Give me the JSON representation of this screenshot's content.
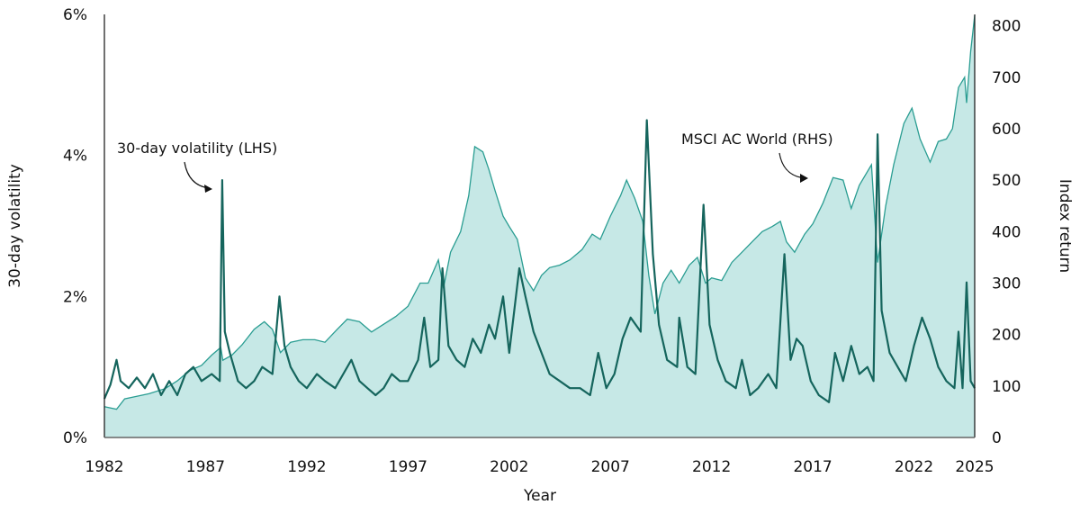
{
  "chart_data": {
    "type": "line",
    "xlabel": "Year",
    "ylabel_left": "30-day volatility",
    "ylabel_right": "Index return",
    "xlim": [
      1982,
      2025
    ],
    "ylim_left": [
      0,
      6
    ],
    "ylim_right": [
      0,
      822
    ],
    "x_ticks": [
      "1982",
      "1987",
      "1992",
      "1997",
      "2002",
      "2007",
      "2012",
      "2017",
      "2022",
      "2025"
    ],
    "x_tick_values": [
      1982,
      1987,
      1992,
      1997,
      2002,
      2007,
      2012,
      2017,
      2022,
      2025
    ],
    "y_ticks_left": [
      "0%",
      "2%",
      "4%",
      "6%"
    ],
    "y_tick_values_left": [
      0,
      2,
      4,
      6
    ],
    "y_ticks_right": [
      "0",
      "100",
      "200",
      "300",
      "400",
      "500",
      "600",
      "700",
      "800"
    ],
    "y_tick_values_right": [
      0,
      100,
      200,
      300,
      400,
      500,
      600,
      700,
      800
    ],
    "grid": false,
    "annotations": [
      {
        "text": "30-day volatility (LHS)",
        "series": "volatility"
      },
      {
        "text": "MSCI AC World (RHS)",
        "series": "index"
      }
    ],
    "colors": {
      "index_line": "#2a9d92",
      "index_fill": "#c6e8e6",
      "volatility": "#15655d",
      "axis": "#111111"
    },
    "series": [
      {
        "id": "index",
        "axis": "right",
        "style": "area",
        "points": [
          [
            1982.0,
            60
          ],
          [
            1982.6,
            55
          ],
          [
            1983.0,
            75
          ],
          [
            1983.6,
            80
          ],
          [
            1984.2,
            85
          ],
          [
            1985.0,
            95
          ],
          [
            1985.6,
            110
          ],
          [
            1986.2,
            130
          ],
          [
            1986.8,
            140
          ],
          [
            1987.3,
            160
          ],
          [
            1987.75,
            175
          ],
          [
            1987.85,
            150
          ],
          [
            1988.3,
            160
          ],
          [
            1988.8,
            180
          ],
          [
            1989.4,
            210
          ],
          [
            1989.9,
            225
          ],
          [
            1990.3,
            210
          ],
          [
            1990.7,
            165
          ],
          [
            1991.2,
            185
          ],
          [
            1991.8,
            190
          ],
          [
            1992.4,
            190
          ],
          [
            1992.9,
            185
          ],
          [
            1993.5,
            210
          ],
          [
            1994.0,
            230
          ],
          [
            1994.6,
            225
          ],
          [
            1995.2,
            205
          ],
          [
            1995.8,
            220
          ],
          [
            1996.4,
            235
          ],
          [
            1997.0,
            255
          ],
          [
            1997.6,
            300
          ],
          [
            1998.0,
            300
          ],
          [
            1998.5,
            345
          ],
          [
            1998.75,
            290
          ],
          [
            1999.1,
            360
          ],
          [
            1999.6,
            400
          ],
          [
            2000.0,
            470
          ],
          [
            2000.3,
            565
          ],
          [
            2000.7,
            555
          ],
          [
            2001.0,
            520
          ],
          [
            2001.3,
            480
          ],
          [
            2001.7,
            430
          ],
          [
            2002.0,
            410
          ],
          [
            2002.4,
            385
          ],
          [
            2002.8,
            310
          ],
          [
            2003.2,
            285
          ],
          [
            2003.6,
            315
          ],
          [
            2004.0,
            330
          ],
          [
            2004.5,
            335
          ],
          [
            2005.0,
            345
          ],
          [
            2005.6,
            365
          ],
          [
            2006.1,
            395
          ],
          [
            2006.5,
            385
          ],
          [
            2007.0,
            430
          ],
          [
            2007.5,
            470
          ],
          [
            2007.8,
            500
          ],
          [
            2008.2,
            465
          ],
          [
            2008.6,
            420
          ],
          [
            2008.9,
            315
          ],
          [
            2009.2,
            240
          ],
          [
            2009.6,
            300
          ],
          [
            2010.0,
            325
          ],
          [
            2010.4,
            300
          ],
          [
            2010.9,
            335
          ],
          [
            2011.3,
            350
          ],
          [
            2011.7,
            300
          ],
          [
            2012.0,
            310
          ],
          [
            2012.5,
            305
          ],
          [
            2013.0,
            340
          ],
          [
            2013.5,
            360
          ],
          [
            2014.0,
            380
          ],
          [
            2014.5,
            400
          ],
          [
            2015.0,
            410
          ],
          [
            2015.4,
            420
          ],
          [
            2015.7,
            380
          ],
          [
            2016.1,
            360
          ],
          [
            2016.6,
            395
          ],
          [
            2017.0,
            415
          ],
          [
            2017.5,
            455
          ],
          [
            2018.0,
            505
          ],
          [
            2018.5,
            500
          ],
          [
            2018.9,
            445
          ],
          [
            2019.3,
            490
          ],
          [
            2019.9,
            530
          ],
          [
            2020.2,
            340
          ],
          [
            2020.6,
            450
          ],
          [
            2021.0,
            530
          ],
          [
            2021.5,
            610
          ],
          [
            2021.9,
            640
          ],
          [
            2022.3,
            580
          ],
          [
            2022.8,
            535
          ],
          [
            2023.2,
            575
          ],
          [
            2023.6,
            580
          ],
          [
            2023.9,
            600
          ],
          [
            2024.2,
            680
          ],
          [
            2024.5,
            700
          ],
          [
            2024.6,
            650
          ],
          [
            2024.8,
            750
          ],
          [
            2025.0,
            820
          ]
        ]
      },
      {
        "id": "volatility",
        "axis": "left",
        "style": "line",
        "points": [
          [
            1982.0,
            0.55
          ],
          [
            1982.3,
            0.75
          ],
          [
            1982.6,
            1.1
          ],
          [
            1982.8,
            0.8
          ],
          [
            1983.2,
            0.7
          ],
          [
            1983.6,
            0.85
          ],
          [
            1984.0,
            0.7
          ],
          [
            1984.4,
            0.9
          ],
          [
            1984.8,
            0.6
          ],
          [
            1985.2,
            0.8
          ],
          [
            1985.6,
            0.6
          ],
          [
            1986.0,
            0.9
          ],
          [
            1986.4,
            1.0
          ],
          [
            1986.8,
            0.8
          ],
          [
            1987.3,
            0.9
          ],
          [
            1987.7,
            0.8
          ],
          [
            1987.82,
            3.65
          ],
          [
            1987.95,
            1.5
          ],
          [
            1988.2,
            1.2
          ],
          [
            1988.6,
            0.8
          ],
          [
            1989.0,
            0.7
          ],
          [
            1989.4,
            0.8
          ],
          [
            1989.8,
            1.0
          ],
          [
            1990.3,
            0.9
          ],
          [
            1990.65,
            2.0
          ],
          [
            1990.9,
            1.3
          ],
          [
            1991.2,
            1.0
          ],
          [
            1991.6,
            0.8
          ],
          [
            1992.0,
            0.7
          ],
          [
            1992.5,
            0.9
          ],
          [
            1992.9,
            0.8
          ],
          [
            1993.4,
            0.7
          ],
          [
            1993.8,
            0.9
          ],
          [
            1994.2,
            1.1
          ],
          [
            1994.6,
            0.8
          ],
          [
            1995.0,
            0.7
          ],
          [
            1995.4,
            0.6
          ],
          [
            1995.8,
            0.7
          ],
          [
            1996.2,
            0.9
          ],
          [
            1996.6,
            0.8
          ],
          [
            1997.0,
            0.8
          ],
          [
            1997.5,
            1.1
          ],
          [
            1997.8,
            1.7
          ],
          [
            1998.1,
            1.0
          ],
          [
            1998.5,
            1.1
          ],
          [
            1998.7,
            2.4
          ],
          [
            1999.0,
            1.3
          ],
          [
            1999.4,
            1.1
          ],
          [
            1999.8,
            1.0
          ],
          [
            2000.2,
            1.4
          ],
          [
            2000.6,
            1.2
          ],
          [
            2001.0,
            1.6
          ],
          [
            2001.3,
            1.4
          ],
          [
            2001.7,
            2.0
          ],
          [
            2002.0,
            1.2
          ],
          [
            2002.5,
            2.4
          ],
          [
            2002.8,
            2.0
          ],
          [
            2003.2,
            1.5
          ],
          [
            2003.6,
            1.2
          ],
          [
            2004.0,
            0.9
          ],
          [
            2004.5,
            0.8
          ],
          [
            2005.0,
            0.7
          ],
          [
            2005.5,
            0.7
          ],
          [
            2006.0,
            0.6
          ],
          [
            2006.4,
            1.2
          ],
          [
            2006.8,
            0.7
          ],
          [
            2007.2,
            0.9
          ],
          [
            2007.6,
            1.4
          ],
          [
            2008.0,
            1.7
          ],
          [
            2008.5,
            1.5
          ],
          [
            2008.8,
            4.5
          ],
          [
            2009.1,
            2.6
          ],
          [
            2009.4,
            1.6
          ],
          [
            2009.8,
            1.1
          ],
          [
            2010.3,
            1.0
          ],
          [
            2010.4,
            1.7
          ],
          [
            2010.8,
            1.0
          ],
          [
            2011.2,
            0.9
          ],
          [
            2011.6,
            3.3
          ],
          [
            2011.9,
            1.6
          ],
          [
            2012.3,
            1.1
          ],
          [
            2012.7,
            0.8
          ],
          [
            2013.2,
            0.7
          ],
          [
            2013.5,
            1.1
          ],
          [
            2013.9,
            0.6
          ],
          [
            2014.3,
            0.7
          ],
          [
            2014.8,
            0.9
          ],
          [
            2015.2,
            0.7
          ],
          [
            2015.6,
            2.6
          ],
          [
            2015.9,
            1.1
          ],
          [
            2016.2,
            1.4
          ],
          [
            2016.5,
            1.3
          ],
          [
            2016.9,
            0.8
          ],
          [
            2017.3,
            0.6
          ],
          [
            2017.8,
            0.5
          ],
          [
            2018.1,
            1.2
          ],
          [
            2018.5,
            0.8
          ],
          [
            2018.9,
            1.3
          ],
          [
            2019.3,
            0.9
          ],
          [
            2019.7,
            1.0
          ],
          [
            2020.0,
            0.8
          ],
          [
            2020.2,
            4.3
          ],
          [
            2020.4,
            1.8
          ],
          [
            2020.8,
            1.2
          ],
          [
            2021.2,
            1.0
          ],
          [
            2021.6,
            0.8
          ],
          [
            2022.0,
            1.3
          ],
          [
            2022.4,
            1.7
          ],
          [
            2022.8,
            1.4
          ],
          [
            2023.2,
            1.0
          ],
          [
            2023.6,
            0.8
          ],
          [
            2024.0,
            0.7
          ],
          [
            2024.2,
            1.5
          ],
          [
            2024.4,
            0.7
          ],
          [
            2024.6,
            2.2
          ],
          [
            2024.8,
            0.8
          ],
          [
            2025.0,
            0.7
          ]
        ]
      }
    ]
  }
}
